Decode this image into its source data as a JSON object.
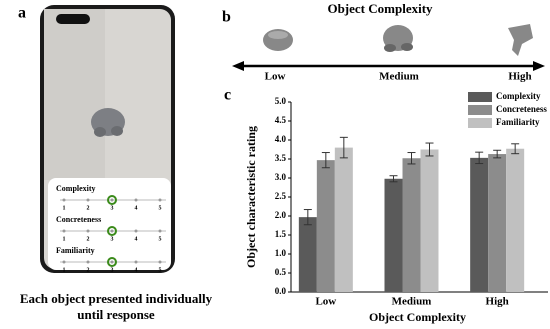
{
  "panel_a": {
    "label": "a",
    "scales": [
      {
        "name": "Complexity",
        "ticks": [
          1,
          2,
          3,
          4,
          5
        ],
        "selected": 3
      },
      {
        "name": "Concreteness",
        "ticks": [
          1,
          2,
          3,
          4,
          5
        ],
        "selected": 3
      },
      {
        "name": "Familiarity",
        "ticks": [
          1,
          2,
          3,
          4,
          5
        ],
        "selected": 3
      }
    ],
    "caption": [
      "Each object presented individually",
      "until response"
    ]
  },
  "panel_b": {
    "label": "b",
    "title": "Object Complexity",
    "levels": [
      "Low",
      "Medium",
      "High"
    ]
  },
  "chart_data": {
    "type": "bar",
    "panel_label": "c",
    "xlabel": "Object Complexity",
    "ylabel": "Object characteristic rating",
    "categories": [
      "Low",
      "Medium",
      "High"
    ],
    "series": [
      {
        "name": "Complexity",
        "color": "#5a5a5a",
        "values": [
          1.97,
          2.98,
          3.53
        ],
        "errors": [
          0.2,
          0.08,
          0.15
        ]
      },
      {
        "name": "Concreteness",
        "color": "#8c8c8c",
        "values": [
          3.47,
          3.52,
          3.63
        ],
        "errors": [
          0.2,
          0.15,
          0.1
        ]
      },
      {
        "name": "Familiarity",
        "color": "#c0c0c0",
        "values": [
          3.8,
          3.75,
          3.77
        ],
        "errors": [
          0.27,
          0.17,
          0.13
        ]
      }
    ],
    "ylim": [
      0,
      5
    ],
    "yticks": [
      {
        "value": 0,
        "label": "0.0"
      },
      0.5,
      {
        "value": 1,
        "label": "1.0"
      },
      1.5,
      {
        "value": 2,
        "label": "2.0"
      },
      2.5,
      {
        "value": 3,
        "label": "3.0"
      },
      3.5,
      {
        "value": 4,
        "label": "4.0"
      },
      4.5,
      {
        "value": 5,
        "label": "5.0"
      }
    ],
    "legend": "upper right"
  }
}
